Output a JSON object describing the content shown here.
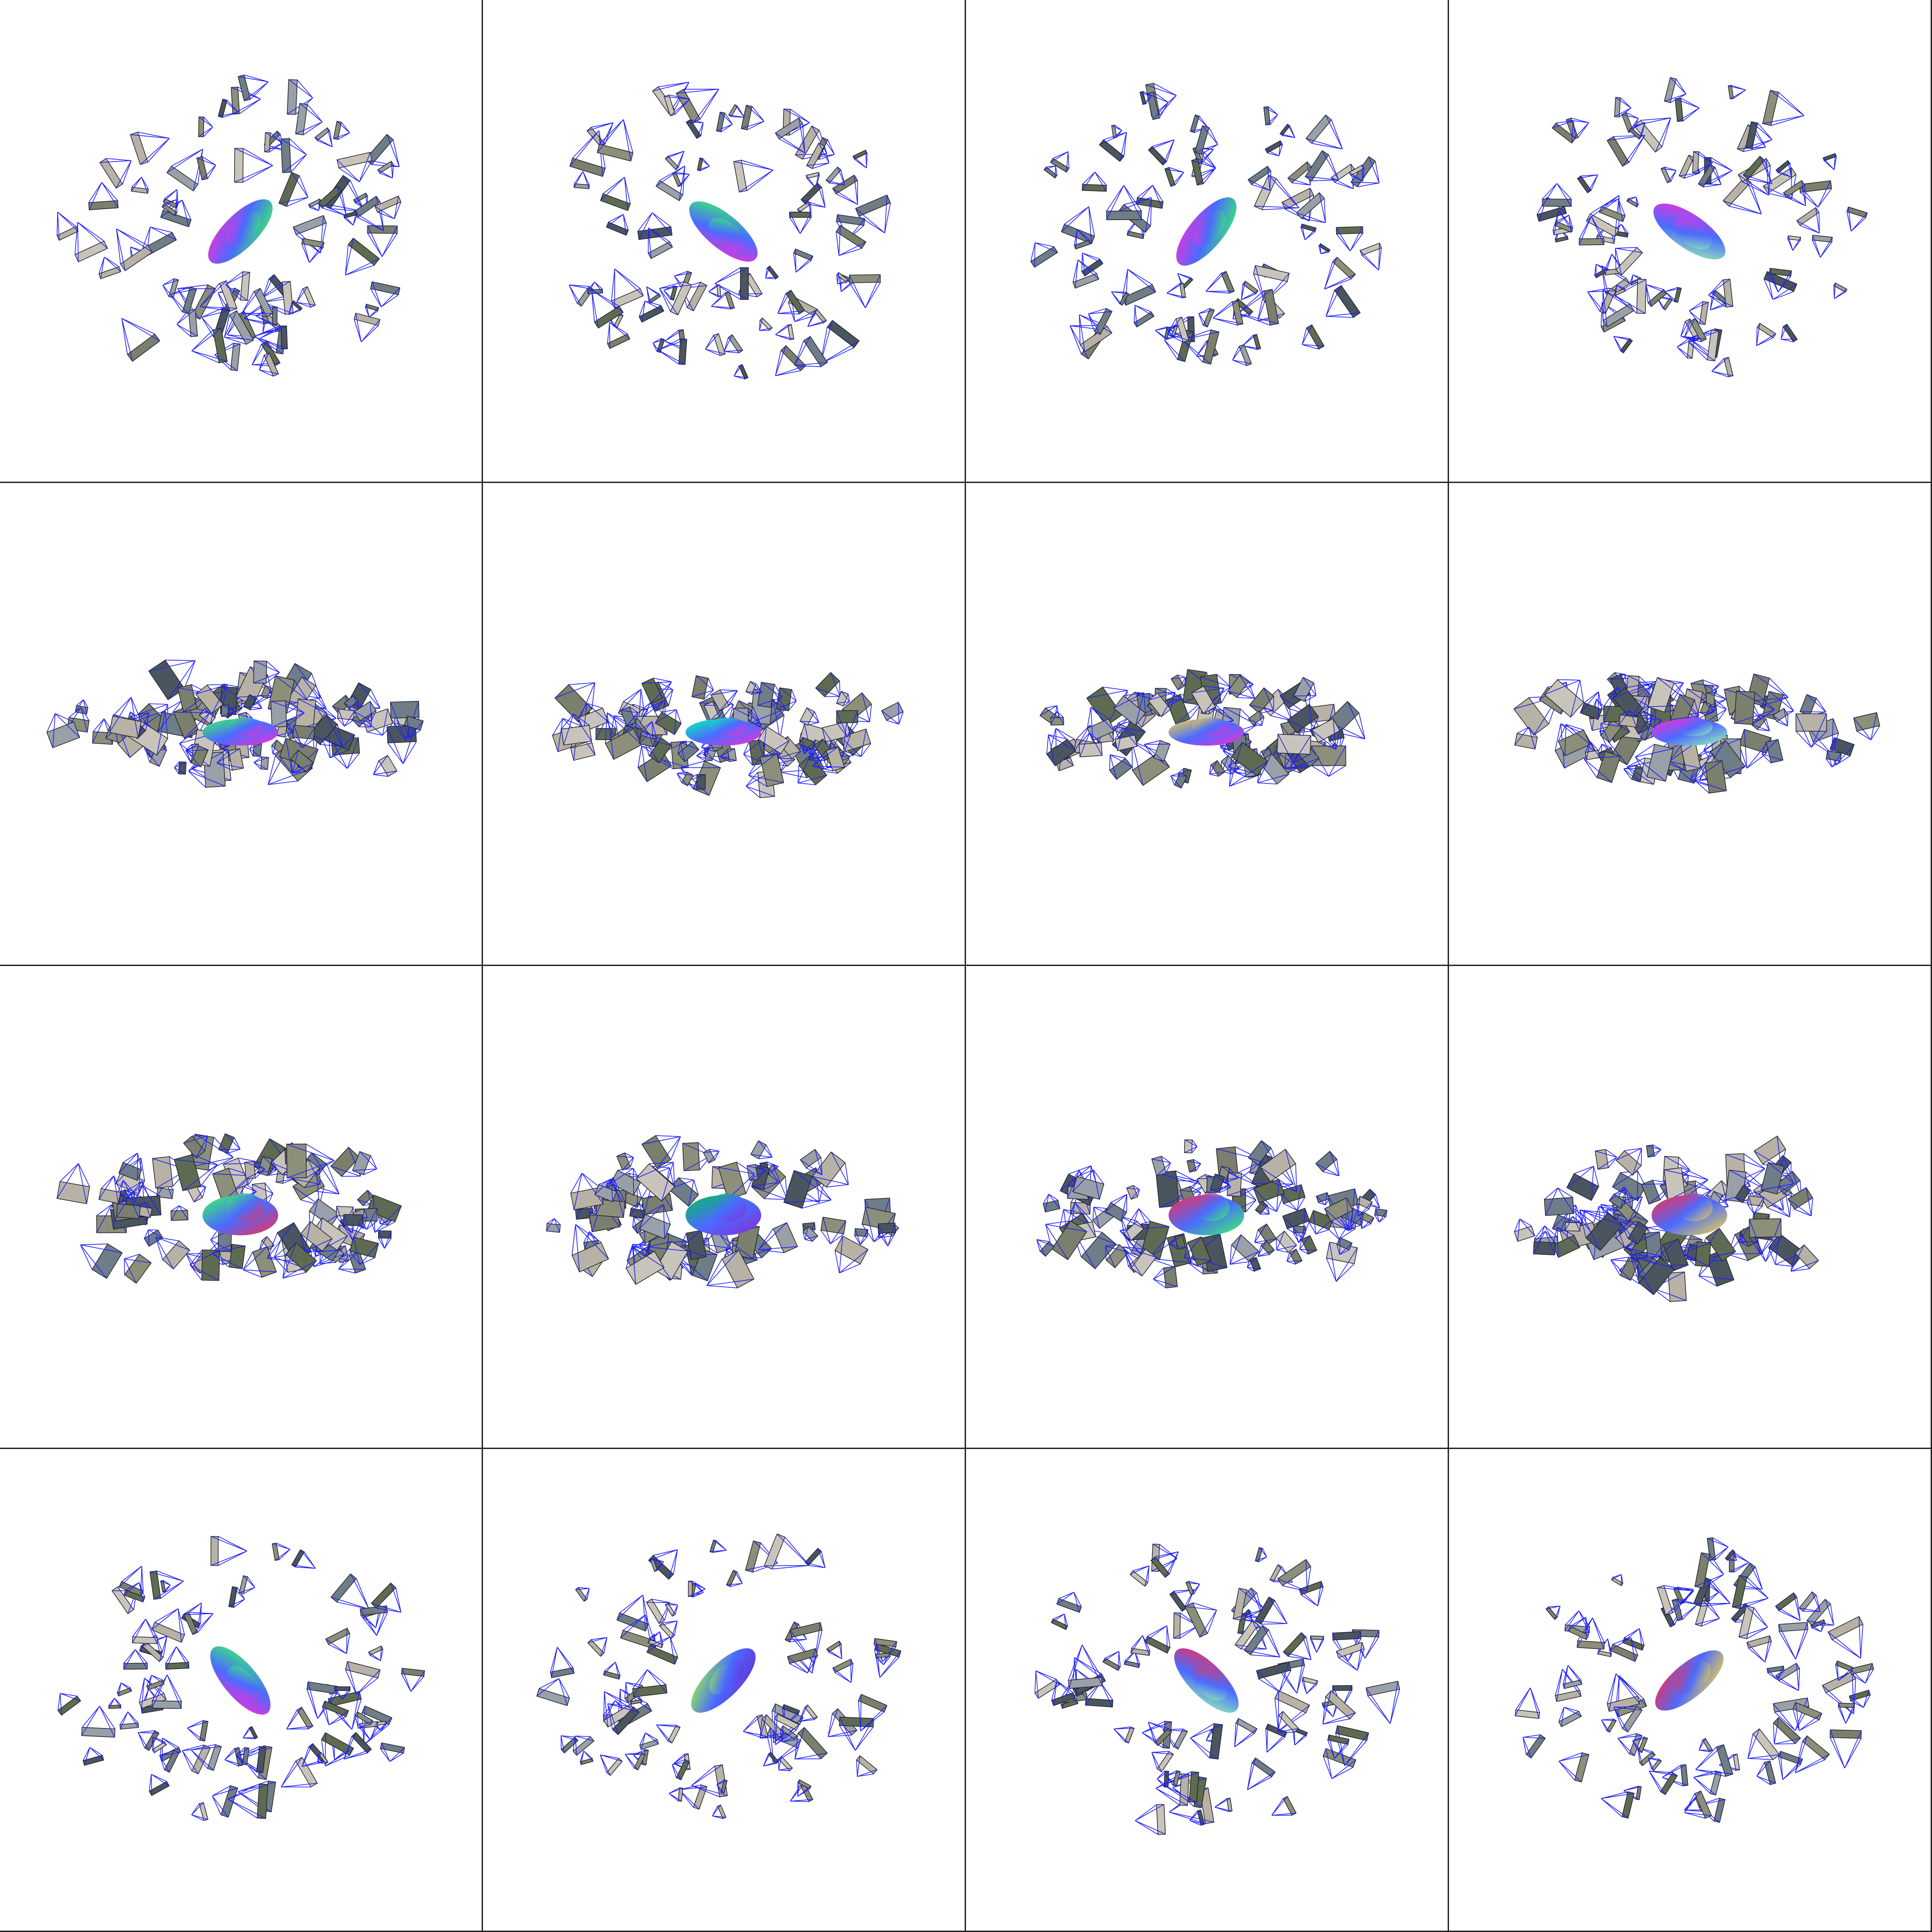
{
  "figure": {
    "rows": 4,
    "cols": 4,
    "frustum_color": "#1f1fff",
    "border_color": "#222222",
    "background": "#ffffff",
    "object": "car",
    "object_render": "normal-color-map",
    "view_rows": [
      {
        "view": "top-down",
        "panels": 4
      },
      {
        "view": "side-elevation-low",
        "panels": 4
      },
      {
        "view": "side-elevation-mid",
        "panels": 4
      },
      {
        "view": "top-down",
        "panels": 4
      }
    ],
    "panels": [
      {
        "row": 0,
        "col": 0,
        "car_hue_start": "#ff2ad4",
        "car_hue_end": "#38ff5c"
      },
      {
        "row": 0,
        "col": 1,
        "car_hue_start": "#38ff5c",
        "car_hue_end": "#ff2ad4"
      },
      {
        "row": 0,
        "col": 2,
        "car_hue_start": "#ff2ad4",
        "car_hue_end": "#38ff5c"
      },
      {
        "row": 0,
        "col": 3,
        "car_hue_start": "#ff2ad4",
        "car_hue_end": "#9cffaa"
      },
      {
        "row": 1,
        "col": 0,
        "car_hue_start": "#38ff5c",
        "car_hue_end": "#ff2ad4"
      },
      {
        "row": 1,
        "col": 1,
        "car_hue_start": "#00ffb0",
        "car_hue_end": "#ff2ad4"
      },
      {
        "row": 1,
        "col": 2,
        "car_hue_start": "#ffdc3a",
        "car_hue_end": "#ff2ad4"
      },
      {
        "row": 1,
        "col": 3,
        "car_hue_start": "#ff2ad4",
        "car_hue_end": "#9cffaa"
      },
      {
        "row": 2,
        "col": 0,
        "car_hue_start": "#38ff5c",
        "car_hue_end": "#ff2a4a"
      },
      {
        "row": 2,
        "col": 1,
        "car_hue_start": "#00c850",
        "car_hue_end": "#8a2ad4"
      },
      {
        "row": 2,
        "col": 2,
        "car_hue_start": "#ff2a4a",
        "car_hue_end": "#38ff5c"
      },
      {
        "row": 2,
        "col": 3,
        "car_hue_start": "#ff2a4a",
        "car_hue_end": "#ffdc3a"
      },
      {
        "row": 3,
        "col": 0,
        "car_hue_start": "#38ff5c",
        "car_hue_end": "#ff2ad4"
      },
      {
        "row": 3,
        "col": 1,
        "car_hue_start": "#9cff3a",
        "car_hue_end": "#6a2ad4"
      },
      {
        "row": 3,
        "col": 2,
        "car_hue_start": "#ff2a4a",
        "car_hue_end": "#9cffaa"
      },
      {
        "row": 3,
        "col": 3,
        "car_hue_start": "#ff2a4a",
        "car_hue_end": "#ffdc3a"
      }
    ]
  }
}
